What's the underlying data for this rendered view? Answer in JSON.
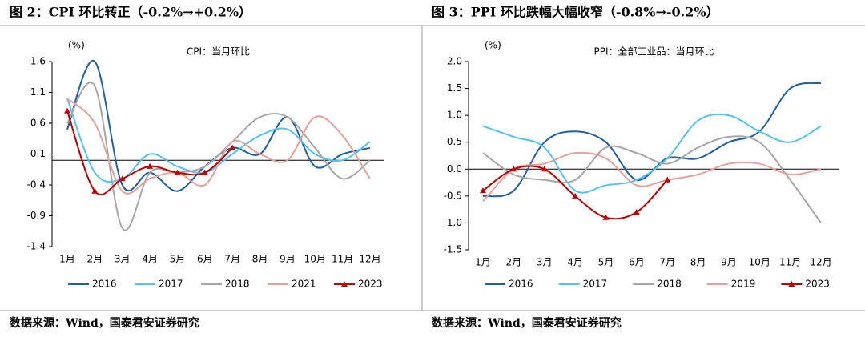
{
  "chart_data": [
    {
      "type": "line",
      "title": "图 2：CPI 环比转正（-0.2%→+0.2%）",
      "unit": "(%)",
      "subtitle": "CPI：当月环比",
      "source": "数据来源：Wind，国泰君安证券研究",
      "categories": [
        "1月",
        "2月",
        "3月",
        "4月",
        "5月",
        "6月",
        "7月",
        "8月",
        "9月",
        "10月",
        "11月",
        "12月"
      ],
      "ylim": [
        -1.4,
        1.6
      ],
      "yticks": [
        -1.4,
        -0.9,
        -0.4,
        0.1,
        0.6,
        1.1,
        1.6
      ],
      "series": [
        {
          "name": "2016",
          "color": "#1f5fa6",
          "values": [
            0.5,
            1.6,
            -0.4,
            -0.2,
            -0.5,
            -0.1,
            0.2,
            0.1,
            0.7,
            -0.1,
            0.1,
            0.2
          ]
        },
        {
          "name": "2017",
          "color": "#4fc3f7",
          "values": [
            1.0,
            -0.2,
            -0.3,
            0.1,
            -0.1,
            -0.2,
            0.1,
            0.4,
            0.5,
            0.1,
            0.0,
            0.3
          ]
        },
        {
          "name": "2018",
          "color": "#a6a6a6",
          "values": [
            0.6,
            1.2,
            -1.1,
            -0.2,
            -0.2,
            -0.1,
            0.3,
            0.7,
            0.7,
            0.2,
            -0.3,
            0.0
          ]
        },
        {
          "name": "2021",
          "color": "#e8a09a",
          "values": [
            1.0,
            0.6,
            -0.5,
            -0.3,
            -0.2,
            -0.4,
            0.3,
            0.1,
            0.0,
            0.7,
            0.4,
            -0.3
          ]
        },
        {
          "name": "2023",
          "color": "#c00000",
          "marker": "triangle",
          "values": [
            0.8,
            -0.5,
            -0.3,
            -0.1,
            -0.2,
            -0.2,
            0.2,
            null,
            null,
            null,
            null,
            null
          ]
        }
      ]
    },
    {
      "type": "line",
      "title": "图 3：PPI 环比跌幅大幅收窄（-0.8%→-0.2%）",
      "unit": "(%)",
      "subtitle": "PPI：全部工业品：当月环比",
      "source": "数据来源：Wind，国泰君安证券研究",
      "categories": [
        "1月",
        "2月",
        "3月",
        "4月",
        "5月",
        "6月",
        "7月",
        "8月",
        "9月",
        "10月",
        "11月",
        "12月"
      ],
      "ylim": [
        -1.5,
        2.0
      ],
      "yticks": [
        -1.5,
        {
          "value": -1,
          "label": "-1.0"
        },
        -0.5,
        {
          "value": 0,
          "label": "0.0"
        },
        0.5,
        {
          "value": 1,
          "label": "1.0"
        },
        1.5,
        {
          "value": 2,
          "label": "2.0"
        }
      ],
      "series": [
        {
          "name": "2016",
          "color": "#1f5fa6",
          "values": [
            -0.5,
            -0.4,
            0.5,
            0.7,
            0.5,
            -0.2,
            0.2,
            0.2,
            0.5,
            0.7,
            1.5,
            1.6
          ]
        },
        {
          "name": "2017",
          "color": "#4fc3f7",
          "values": [
            0.8,
            0.6,
            0.4,
            -0.4,
            -0.3,
            -0.2,
            0.2,
            0.9,
            1.0,
            0.7,
            0.5,
            0.8
          ]
        },
        {
          "name": "2018",
          "color": "#a6a6a6",
          "values": [
            0.3,
            -0.1,
            -0.2,
            -0.2,
            0.4,
            0.3,
            0.1,
            0.4,
            0.6,
            0.5,
            -0.2,
            -1.0
          ]
        },
        {
          "name": "2019",
          "color": "#e8a09a",
          "values": [
            -0.6,
            0.0,
            0.1,
            0.3,
            0.2,
            -0.3,
            -0.2,
            -0.1,
            0.1,
            0.1,
            -0.1,
            0.0
          ]
        },
        {
          "name": "2023",
          "color": "#c00000",
          "marker": "triangle",
          "values": [
            -0.4,
            0.0,
            0.0,
            -0.5,
            -0.9,
            -0.8,
            -0.2,
            null,
            null,
            null,
            null,
            null
          ]
        }
      ]
    }
  ]
}
